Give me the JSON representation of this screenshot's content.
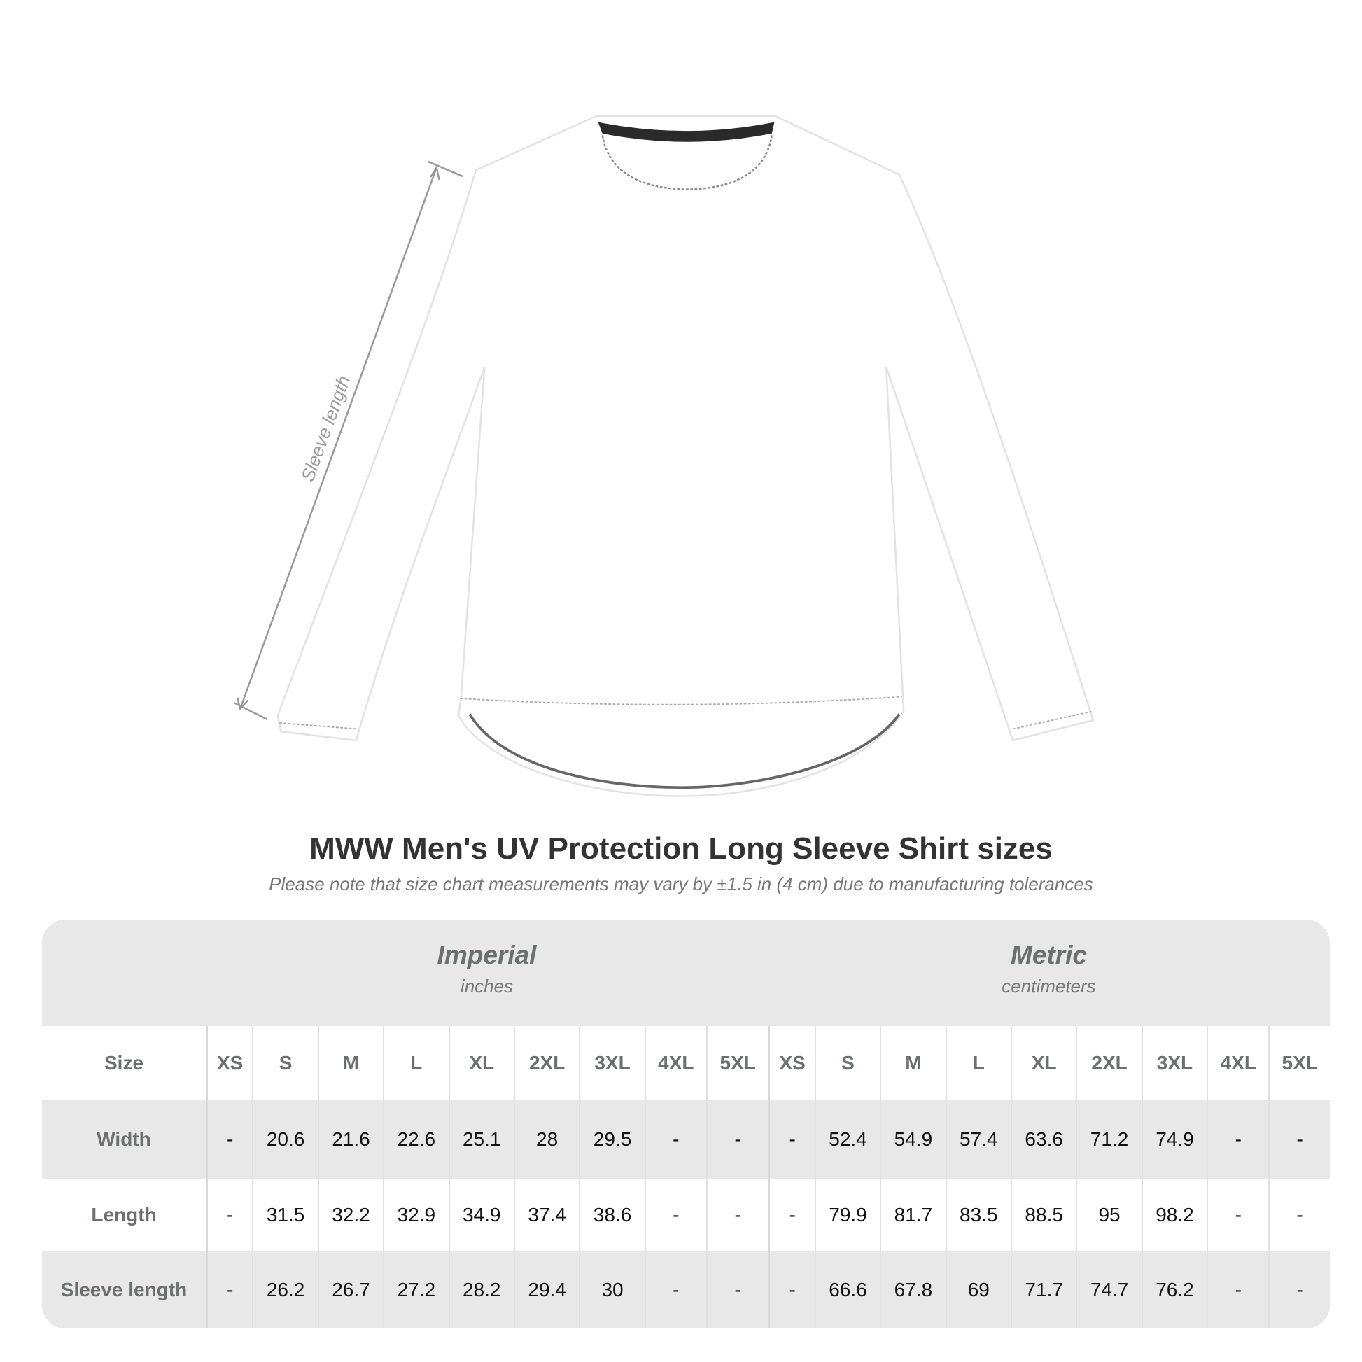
{
  "diagram": {
    "measure_label": "Sleeve length"
  },
  "title": "MWW Men's UV Protection Long Sleeve Shirt sizes",
  "subtitle": "Please note that size chart measurements may vary by ±1.5 in (4 cm) due to manufacturing tolerances",
  "imperial": {
    "name": "Imperial",
    "unit": "inches"
  },
  "metric": {
    "name": "Metric",
    "unit": "centimeters"
  },
  "table": {
    "size_label": "Size",
    "sizes": [
      "XS",
      "S",
      "M",
      "L",
      "XL",
      "2XL",
      "3XL",
      "4XL",
      "5XL"
    ],
    "rows": [
      {
        "label": "Width",
        "imperial": [
          "-",
          "20.6",
          "21.6",
          "22.6",
          "25.1",
          "28",
          "29.5",
          "-",
          "-"
        ],
        "metric": [
          "-",
          "52.4",
          "54.9",
          "57.4",
          "63.6",
          "71.2",
          "74.9",
          "-",
          "-"
        ]
      },
      {
        "label": "Length",
        "imperial": [
          "-",
          "31.5",
          "32.2",
          "32.9",
          "34.9",
          "37.4",
          "38.6",
          "-",
          "-"
        ],
        "metric": [
          "-",
          "79.9",
          "81.7",
          "83.5",
          "88.5",
          "95",
          "98.2",
          "-",
          "-"
        ]
      },
      {
        "label": "Sleeve length",
        "imperial": [
          "-",
          "26.2",
          "26.7",
          "27.2",
          "28.2",
          "29.4",
          "30",
          "-",
          "-"
        ],
        "metric": [
          "-",
          "66.6",
          "67.8",
          "69",
          "71.7",
          "74.7",
          "76.2",
          "-",
          "-"
        ]
      }
    ]
  }
}
